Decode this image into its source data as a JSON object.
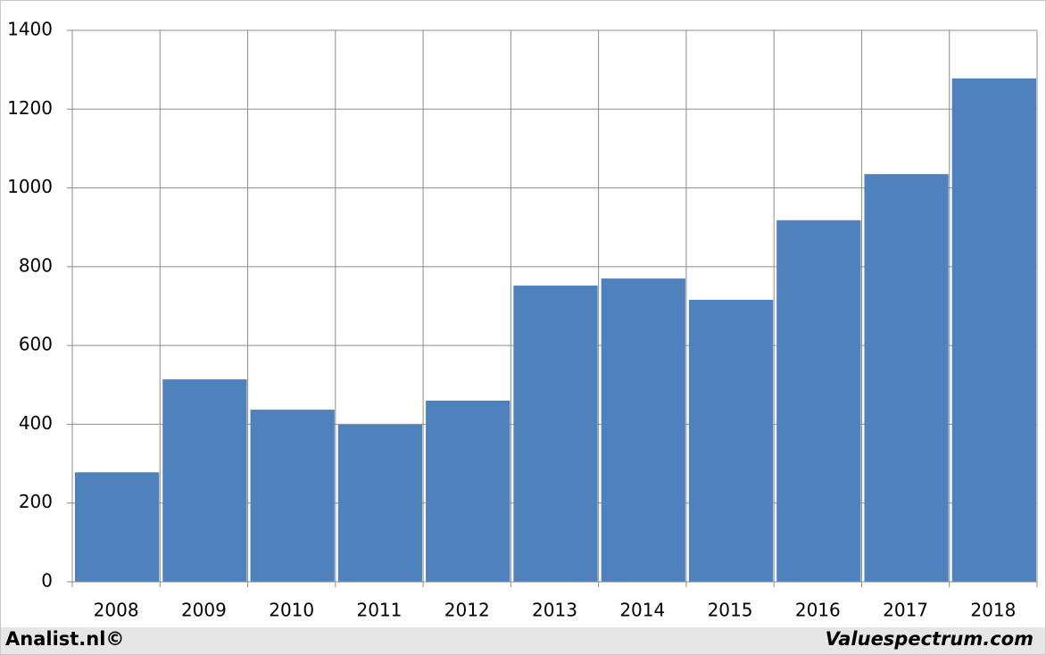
{
  "chart_data": {
    "type": "bar",
    "categories": [
      "2008",
      "2009",
      "2010",
      "2011",
      "2012",
      "2013",
      "2014",
      "2015",
      "2016",
      "2017",
      "2018"
    ],
    "values": [
      278,
      514,
      437,
      399,
      460,
      752,
      770,
      716,
      918,
      1035,
      1278
    ],
    "color": "#4f81bd",
    "ylim": [
      0,
      1400
    ],
    "yticks": [
      0,
      200,
      400,
      600,
      800,
      1000,
      1200,
      1400
    ],
    "grid": true,
    "annotations": [
      "Analist.nl©",
      "Valuespectrum.com"
    ]
  }
}
